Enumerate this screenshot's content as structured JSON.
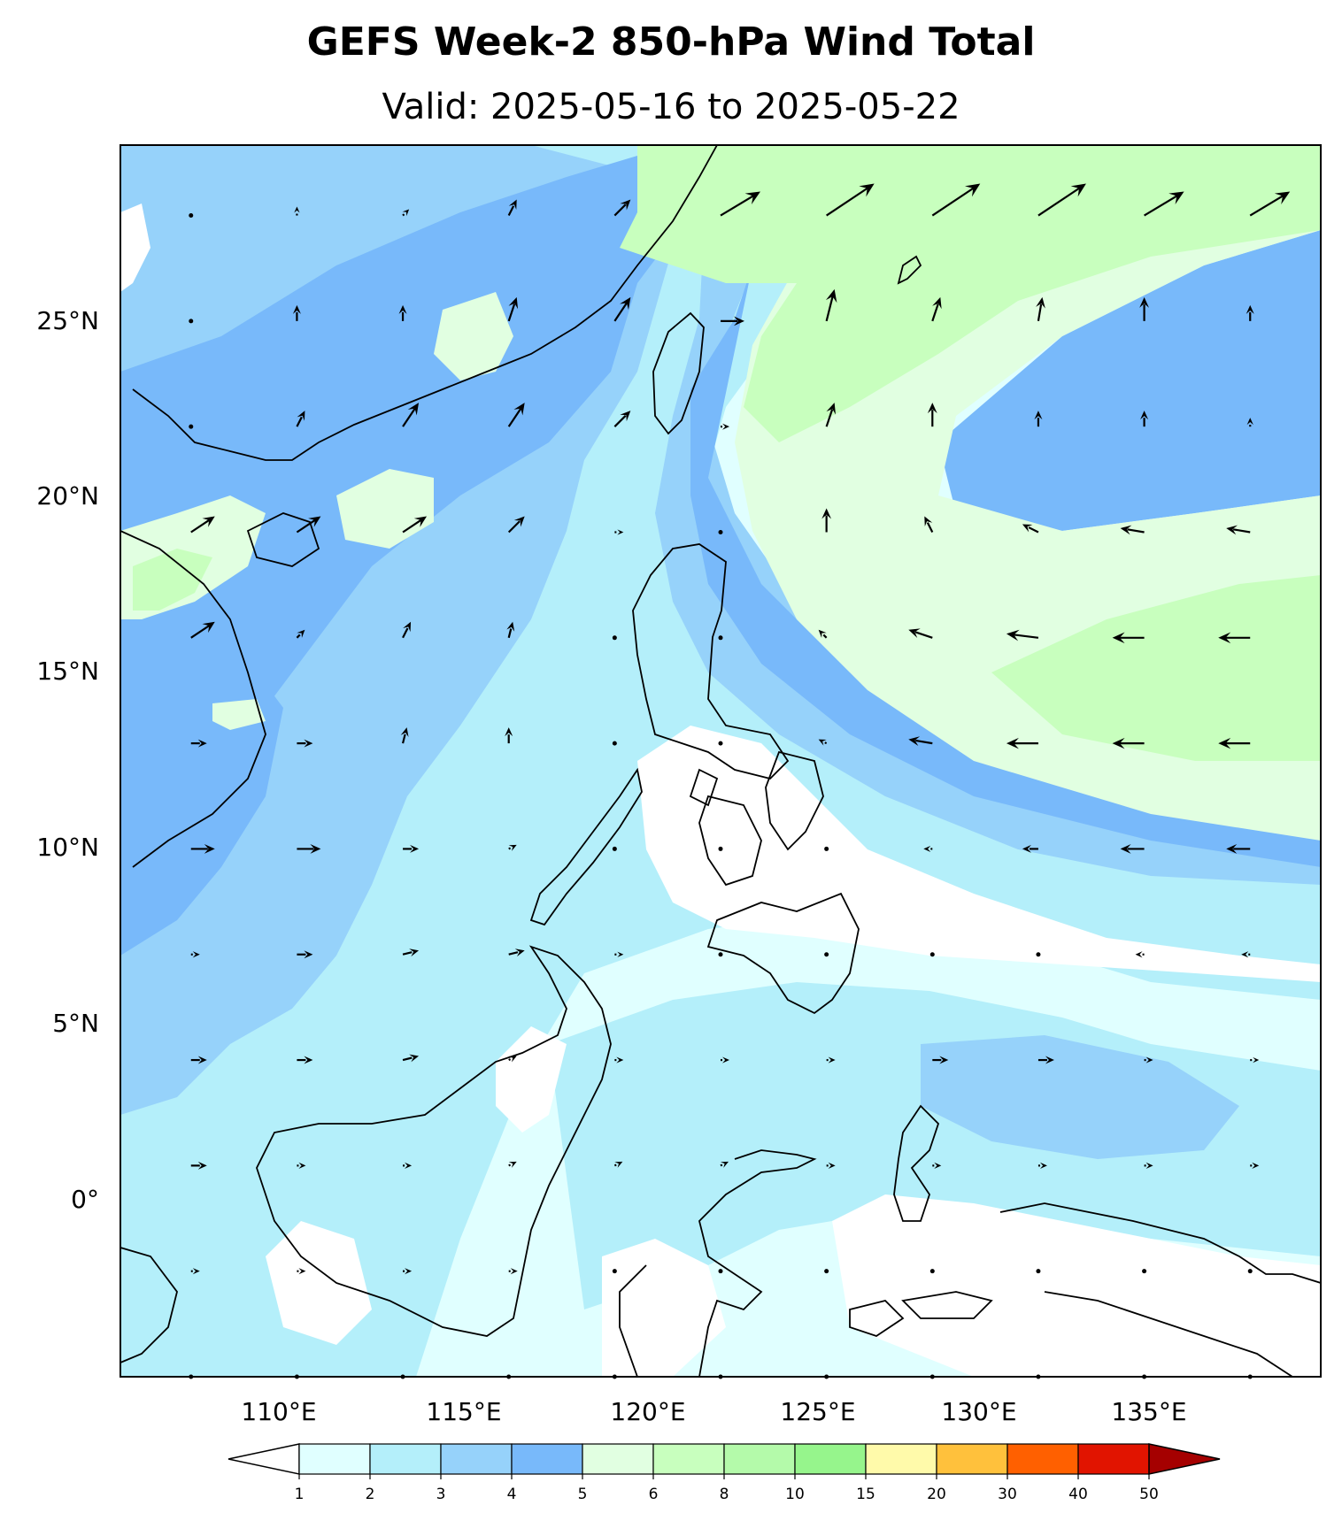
{
  "title": "GEFS Week-2 850-hPa Wind Total",
  "subtitle": "Valid: 2025-05-16 to 2025-05-22",
  "map": {
    "lat_range": [
      -5,
      30
    ],
    "lon_range": [
      105,
      139
    ],
    "lat_ticks": [
      {
        "value": 25,
        "label": "25°N"
      },
      {
        "value": 20,
        "label": "20°N"
      },
      {
        "value": 15,
        "label": "15°N"
      },
      {
        "value": 10,
        "label": "10°N"
      },
      {
        "value": 5,
        "label": "5°N"
      },
      {
        "value": 0,
        "label": "0°"
      }
    ],
    "lon_ticks": [
      {
        "value": 110,
        "label": "110°E"
      },
      {
        "value": 115,
        "label": "115°E"
      },
      {
        "value": 120,
        "label": "120°E"
      },
      {
        "value": 125,
        "label": "125°E"
      },
      {
        "value": 130,
        "label": "130°E"
      },
      {
        "value": 135,
        "label": "135°E"
      }
    ]
  },
  "colorbar": {
    "levels": [
      "1",
      "2",
      "3",
      "4",
      "5",
      "6",
      "8",
      "10",
      "15",
      "20",
      "30",
      "40",
      "50"
    ],
    "colors": [
      "#e0ffff",
      "#b4effa",
      "#96d2fa",
      "#78b9fa",
      "#e1ffe1",
      "#c8ffbe",
      "#b4faaa",
      "#96f58c",
      "#fffaaa",
      "#ffc13c",
      "#ff6000",
      "#e11400",
      "#a50000"
    ],
    "under_color": "#ffffff",
    "extend": "both"
  },
  "wind_speed_zones": [
    {
      "name": "calm",
      "color": "#ffffff"
    },
    {
      "name": "1-2",
      "color": "#e0ffff"
    },
    {
      "name": "2-3",
      "color": "#b4effa"
    },
    {
      "name": "3-4",
      "color": "#96d2fa"
    },
    {
      "name": "4-5",
      "color": "#78b9fa"
    },
    {
      "name": "5-6",
      "color": "#e1ffe1"
    },
    {
      "name": "6-8",
      "color": "#c8ffbe"
    }
  ],
  "vectors": {
    "lons": [
      107,
      110,
      113,
      116,
      119,
      122,
      125,
      128,
      131,
      134,
      137
    ],
    "lats": [
      28,
      25,
      22,
      19,
      16,
      13,
      10,
      7,
      4,
      1,
      -2,
      -5
    ],
    "u": [
      [
        0,
        0,
        0.5,
        1,
        2,
        5,
        6,
        6,
        6,
        5,
        5
      ],
      [
        0,
        0,
        0,
        1,
        2,
        3,
        1,
        1,
        0.5,
        0,
        0
      ],
      [
        0,
        1,
        2,
        2,
        2,
        1,
        1,
        0,
        0,
        0,
        0
      ],
      [
        3,
        3,
        3,
        2,
        0.5,
        0,
        0,
        -1,
        -2,
        -3,
        -3
      ],
      [
        3,
        1,
        1,
        0.5,
        0,
        0,
        -1,
        -3,
        -4,
        -4,
        -4
      ],
      [
        2,
        2,
        0.5,
        0,
        0,
        0,
        -1,
        -3,
        -4,
        -4,
        -4
      ],
      [
        3,
        3,
        2,
        1,
        0,
        0,
        0,
        -1,
        -2,
        -3,
        -3
      ],
      [
        1,
        2,
        2,
        2,
        0.5,
        0,
        0,
        0,
        0,
        -1,
        -1
      ],
      [
        2,
        2,
        2,
        1,
        1,
        1,
        1,
        2,
        2,
        1,
        0.5
      ],
      [
        2,
        1,
        1,
        1,
        1,
        1,
        1,
        1,
        1,
        1,
        1
      ],
      [
        1,
        1,
        1,
        1,
        0,
        0,
        0,
        0,
        0,
        0,
        0
      ],
      [
        0,
        0,
        0,
        0,
        0,
        0,
        0,
        0,
        0,
        0,
        0
      ]
    ],
    "v": [
      [
        0,
        0.5,
        0.5,
        2,
        2,
        3,
        4,
        4,
        4,
        3,
        3
      ],
      [
        0,
        2,
        2,
        3,
        3,
        0,
        4,
        3,
        3,
        3,
        2
      ],
      [
        0,
        2,
        3,
        3,
        2,
        0,
        3,
        3,
        2,
        2,
        1
      ],
      [
        2,
        2,
        2,
        2,
        0,
        0,
        3,
        2,
        1,
        0.5,
        0.5
      ],
      [
        2,
        1,
        2,
        2,
        0,
        0,
        1,
        1,
        0.5,
        0,
        0
      ],
      [
        0,
        0,
        2,
        2,
        0,
        0,
        0.5,
        0.5,
        0,
        0,
        0
      ],
      [
        0,
        0,
        0,
        0.5,
        0,
        0,
        0,
        0,
        0,
        0,
        0
      ],
      [
        0,
        0,
        0.5,
        0.5,
        0,
        0,
        0,
        0,
        0,
        0,
        0
      ],
      [
        0,
        0,
        0.5,
        0.5,
        0,
        0,
        0,
        0,
        0,
        0,
        0
      ],
      [
        0,
        0,
        0,
        0.5,
        0.5,
        0.5,
        0,
        0,
        0,
        0,
        0
      ],
      [
        0,
        0,
        0,
        0,
        0,
        0,
        0,
        0,
        0,
        0,
        0
      ],
      [
        0,
        0,
        0,
        0,
        0,
        0,
        0,
        0,
        0,
        0,
        0
      ]
    ]
  }
}
